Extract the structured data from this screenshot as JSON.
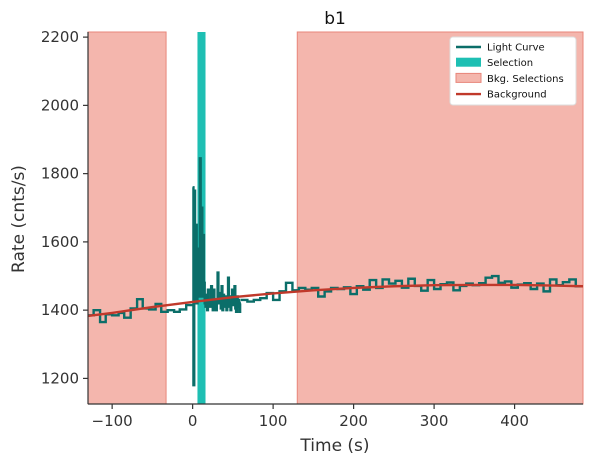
{
  "chart_data": {
    "type": "line",
    "title": "b1",
    "xlabel": "Time (s)",
    "ylabel": "Rate (cnts/s)",
    "xlim": [
      -130,
      485
    ],
    "ylim": [
      1125,
      2215
    ],
    "xticks": [
      -100,
      0,
      100,
      200,
      300,
      400
    ],
    "yticks": [
      1200,
      1400,
      1600,
      1800,
      2000,
      2200
    ],
    "grid": false,
    "legend_position": "top-right",
    "colors": {
      "light_curve": "#0b6e69",
      "selection": "#1ebfb3",
      "bkg_selection_fill": "#f4b6ad",
      "bkg_selection_edge": "#e8867a",
      "background": "#c0392b"
    },
    "legend": [
      {
        "label": "Light Curve",
        "kind": "line",
        "series": "light_curve"
      },
      {
        "label": "Selection",
        "kind": "patch",
        "series": "selection"
      },
      {
        "label": "Bkg. Selections",
        "kind": "patch",
        "series": "bkg_selection"
      },
      {
        "label": "Background",
        "kind": "line",
        "series": "background"
      }
    ],
    "selection": [
      6,
      16
    ],
    "bkg_selections": [
      [
        -130,
        -33
      ],
      [
        130,
        485
      ]
    ],
    "background": {
      "x": [
        -130,
        -100,
        -50,
        0,
        50,
        100,
        150,
        200,
        250,
        300,
        350,
        400,
        450,
        485
      ],
      "y": [
        1383,
        1392,
        1409,
        1424,
        1438,
        1449,
        1458,
        1465,
        1470,
        1473,
        1474,
        1474,
        1472,
        1470
      ]
    },
    "light_curve": {
      "coarse": {
        "edges": [
          -130,
          -123,
          -115,
          -108,
          -100,
          -92,
          -85,
          -77,
          -69,
          -62,
          -54,
          -46,
          -39,
          -31,
          -23,
          -16,
          -8,
          0
        ],
        "values": [
          1385,
          1400,
          1365,
          1388,
          1385,
          1392,
          1378,
          1405,
          1432,
          1405,
          1402,
          1418,
          1395,
          1400,
          1395,
          1402,
          1415
        ]
      },
      "fine": {
        "edges": [
          0,
          1,
          2,
          3,
          4,
          5,
          6,
          7,
          8,
          9,
          10,
          11,
          12,
          13,
          14,
          15,
          16,
          17,
          18,
          19,
          20,
          21,
          22,
          23,
          24,
          25,
          26,
          27,
          28,
          29,
          30,
          31,
          32,
          33,
          34,
          35,
          36,
          37,
          38,
          39,
          40,
          41,
          42,
          43,
          44,
          45,
          46,
          47,
          48,
          49,
          50,
          51,
          52,
          53,
          54,
          55,
          56,
          57,
          58,
          59,
          60
        ],
        "values": [
          1760,
          1180,
          1750,
          1430,
          1650,
          1420,
          1580,
          1500,
          1440,
          1845,
          1600,
          1700,
          1440,
          1620,
          1480,
          1420,
          1410,
          1445,
          1400,
          1460,
          1420,
          1430,
          1410,
          1470,
          1440,
          1400,
          1460,
          1405,
          1425,
          1400,
          1430,
          1510,
          1420,
          1420,
          1450,
          1405,
          1470,
          1400,
          1445,
          1420,
          1410,
          1440,
          1400,
          1435,
          1495,
          1410,
          1425,
          1400,
          1440,
          1460,
          1415,
          1420,
          1470,
          1405,
          1395,
          1440,
          1410,
          1430,
          1395,
          1420
        ]
      },
      "coarse_after": {
        "edges": [
          60,
          68,
          76,
          84,
          92,
          100,
          108,
          116,
          124,
          132,
          140,
          148,
          156,
          164,
          172,
          180,
          188,
          196,
          204,
          212,
          220,
          228,
          236,
          244,
          252,
          260,
          268,
          276,
          284,
          292,
          300,
          308,
          316,
          324,
          332,
          340,
          348,
          356,
          364,
          372,
          380,
          388,
          396,
          404,
          412,
          420,
          428,
          436,
          444,
          452,
          460,
          468,
          476,
          485
        ],
        "values": [
          1430,
          1425,
          1430,
          1435,
          1450,
          1430,
          1455,
          1480,
          1458,
          1465,
          1460,
          1465,
          1440,
          1455,
          1465,
          1462,
          1467,
          1447,
          1470,
          1460,
          1488,
          1465,
          1490,
          1478,
          1486,
          1466,
          1492,
          1471,
          1457,
          1488,
          1462,
          1476,
          1481,
          1458,
          1471,
          1478,
          1473,
          1479,
          1495,
          1500,
          1480,
          1484,
          1466,
          1475,
          1479,
          1462,
          1478,
          1455,
          1490,
          1473,
          1482,
          1490,
          1470
        ]
      }
    }
  }
}
